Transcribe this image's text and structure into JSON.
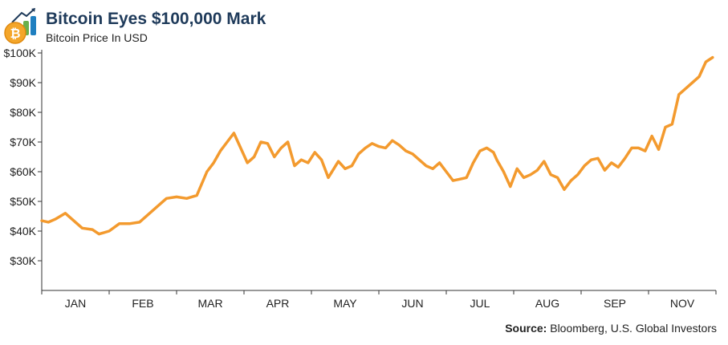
{
  "header": {
    "title": "Bitcoin Eyes $100,000 Mark",
    "subtitle": "Bitcoin Price In USD",
    "logo_icon": "bitcoin-chart-logo-icon"
  },
  "footer": {
    "source_label": "Source:",
    "source_text": "Bloomberg, U.S. Global Investors"
  },
  "colors": {
    "line": "#f39a2e",
    "title": "#1e3a5a",
    "axis": "#333333",
    "logo_coin": "#f4a62a",
    "logo_bar_blue": "#1f7fc0",
    "logo_bar_green": "#6ab04c"
  },
  "chart_data": {
    "type": "line",
    "title": "Bitcoin Eyes $100,000 Mark",
    "subtitle": "Bitcoin Price In USD",
    "xlabel": "",
    "ylabel": "",
    "x_unit": "month",
    "x_ticks": [
      "JAN",
      "FEB",
      "MAR",
      "APR",
      "MAY",
      "JUN",
      "JUL",
      "AUG",
      "SEP",
      "NOV"
    ],
    "ylim": [
      20000,
      100000
    ],
    "y_ticks": [
      30000,
      40000,
      50000,
      60000,
      70000,
      80000,
      90000,
      100000
    ],
    "y_tick_labels": [
      "$30K",
      "$40K",
      "$50K",
      "$60K",
      "$70K",
      "$80K",
      "$90K",
      "$100K"
    ],
    "grid": false,
    "legend": "none",
    "series": [
      {
        "x": [
          0,
          0.1,
          0.2,
          0.35,
          0.5,
          0.6,
          0.75,
          0.85,
          1.0,
          1.15,
          1.3,
          1.45,
          1.6,
          1.75,
          1.85,
          2.0,
          2.15,
          2.3,
          2.45,
          2.55,
          2.65,
          2.75,
          2.85,
          2.95,
          3.05,
          3.15,
          3.25,
          3.35,
          3.45,
          3.55,
          3.65,
          3.75,
          3.85,
          3.95,
          4.05,
          4.15,
          4.25,
          4.4,
          4.5,
          4.6,
          4.7,
          4.8,
          4.9,
          5.0,
          5.1,
          5.2,
          5.3,
          5.4,
          5.5,
          5.6,
          5.7,
          5.8,
          5.9,
          6.0,
          6.05,
          6.1,
          6.2,
          6.3,
          6.4,
          6.5,
          6.6,
          6.7,
          6.75,
          6.85,
          6.95,
          7.05,
          7.15,
          7.25,
          7.35,
          7.45,
          7.55,
          7.65,
          7.75,
          7.85,
          7.95,
          8.05,
          8.15,
          8.25,
          8.35,
          8.45,
          8.55,
          8.65,
          8.75,
          8.85,
          8.95,
          9.05,
          9.15,
          9.25,
          9.35,
          9.45,
          9.55,
          9.65,
          9.75,
          9.85,
          9.95
        ],
        "y": [
          43500,
          43000,
          44000,
          46000,
          43000,
          41000,
          40500,
          39000,
          40000,
          42500,
          42500,
          43000,
          46000,
          49000,
          51000,
          51500,
          51000,
          52000,
          60000,
          63000,
          67000,
          70000,
          73000,
          68000,
          63000,
          65000,
          70000,
          69500,
          65000,
          68000,
          70000,
          62000,
          64000,
          63000,
          66500,
          64000,
          58000,
          63500,
          61000,
          62000,
          66000,
          68000,
          69500,
          68500,
          68000,
          70500,
          69000,
          67000,
          66000,
          64000,
          62000,
          61000,
          63000,
          60000,
          58500,
          57000,
          57500,
          58000,
          63000,
          67000,
          68000,
          66500,
          64000,
          60000,
          55000,
          61000,
          58000,
          59000,
          60500,
          63500,
          59000,
          58000,
          54000,
          57000,
          59000,
          62000,
          64000,
          64500,
          60500,
          63000,
          61500,
          64500,
          68000,
          68000,
          67000,
          72000,
          67500,
          75000,
          76000,
          86000,
          88000,
          90000,
          92000,
          97000,
          98500
        ]
      }
    ]
  }
}
